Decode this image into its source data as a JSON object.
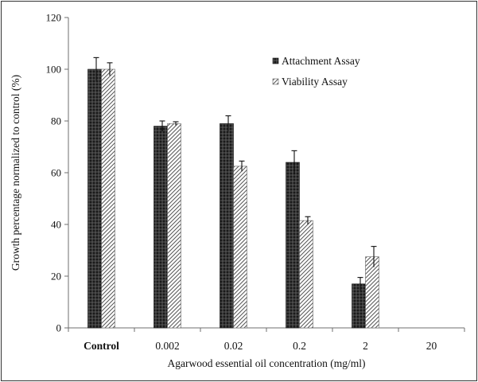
{
  "chart_data": {
    "type": "bar",
    "xlabel": "Agarwood essential oil concentration (mg/ml)",
    "ylabel": "Growth percentage normalized to control (%)",
    "ylim": [
      0,
      120
    ],
    "yticks": [
      "0",
      "20",
      "40",
      "60",
      "80",
      "100",
      "120"
    ],
    "categories": [
      "Control",
      "0.002",
      "0.02",
      "0.2",
      "2",
      "20"
    ],
    "series": [
      {
        "name": "Attachment Assay",
        "values": [
          100,
          78,
          79,
          64,
          17,
          0
        ],
        "errors": [
          4.5,
          2,
          3,
          4.5,
          2.5,
          0
        ],
        "pattern": "dark-crosshatch"
      },
      {
        "name": "Viability Assay",
        "values": [
          100,
          79,
          62.5,
          41.5,
          27.5,
          0
        ],
        "errors": [
          2.5,
          0.7,
          2,
          1.5,
          4,
          0
        ],
        "pattern": "diagonal-hatch"
      }
    ],
    "grid": false,
    "legend_position": "top-right",
    "colors": {
      "dark": "#1a1a1a",
      "hatch": "#555555",
      "axis": "#6f6f6f"
    }
  }
}
